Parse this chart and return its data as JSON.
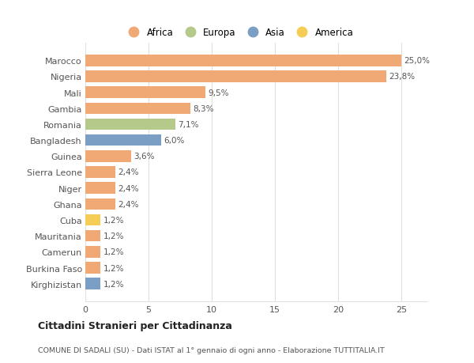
{
  "categories": [
    "Marocco",
    "Nigeria",
    "Mali",
    "Gambia",
    "Romania",
    "Bangladesh",
    "Guinea",
    "Sierra Leone",
    "Niger",
    "Ghana",
    "Cuba",
    "Mauritania",
    "Camerun",
    "Burkina Faso",
    "Kirghizistan"
  ],
  "values": [
    25.0,
    23.8,
    9.5,
    8.3,
    7.1,
    6.0,
    3.6,
    2.4,
    2.4,
    2.4,
    1.2,
    1.2,
    1.2,
    1.2,
    1.2
  ],
  "labels": [
    "25,0%",
    "23,8%",
    "9,5%",
    "8,3%",
    "7,1%",
    "6,0%",
    "3,6%",
    "2,4%",
    "2,4%",
    "2,4%",
    "1,2%",
    "1,2%",
    "1,2%",
    "1,2%",
    "1,2%"
  ],
  "colors": [
    "#f0a875",
    "#f0a875",
    "#f0a875",
    "#f0a875",
    "#b5c98a",
    "#7b9ec5",
    "#f0a875",
    "#f0a875",
    "#f0a875",
    "#f0a875",
    "#f5cc55",
    "#f0a875",
    "#f0a875",
    "#f0a875",
    "#7b9ec5"
  ],
  "legend_labels": [
    "Africa",
    "Europa",
    "Asia",
    "America"
  ],
  "legend_colors": [
    "#f0a875",
    "#b5c98a",
    "#7b9ec5",
    "#f5cc55"
  ],
  "title": "Cittadini Stranieri per Cittadinanza",
  "subtitle": "COMUNE DI SADALI (SU) - Dati ISTAT al 1° gennaio di ogni anno - Elaborazione TUTTITALIA.IT",
  "xlim": [
    0,
    27
  ],
  "xticks": [
    0,
    5,
    10,
    15,
    20,
    25
  ],
  "background_color": "#ffffff",
  "plot_bg_color": "#ffffff",
  "grid_color": "#e0e0e0"
}
